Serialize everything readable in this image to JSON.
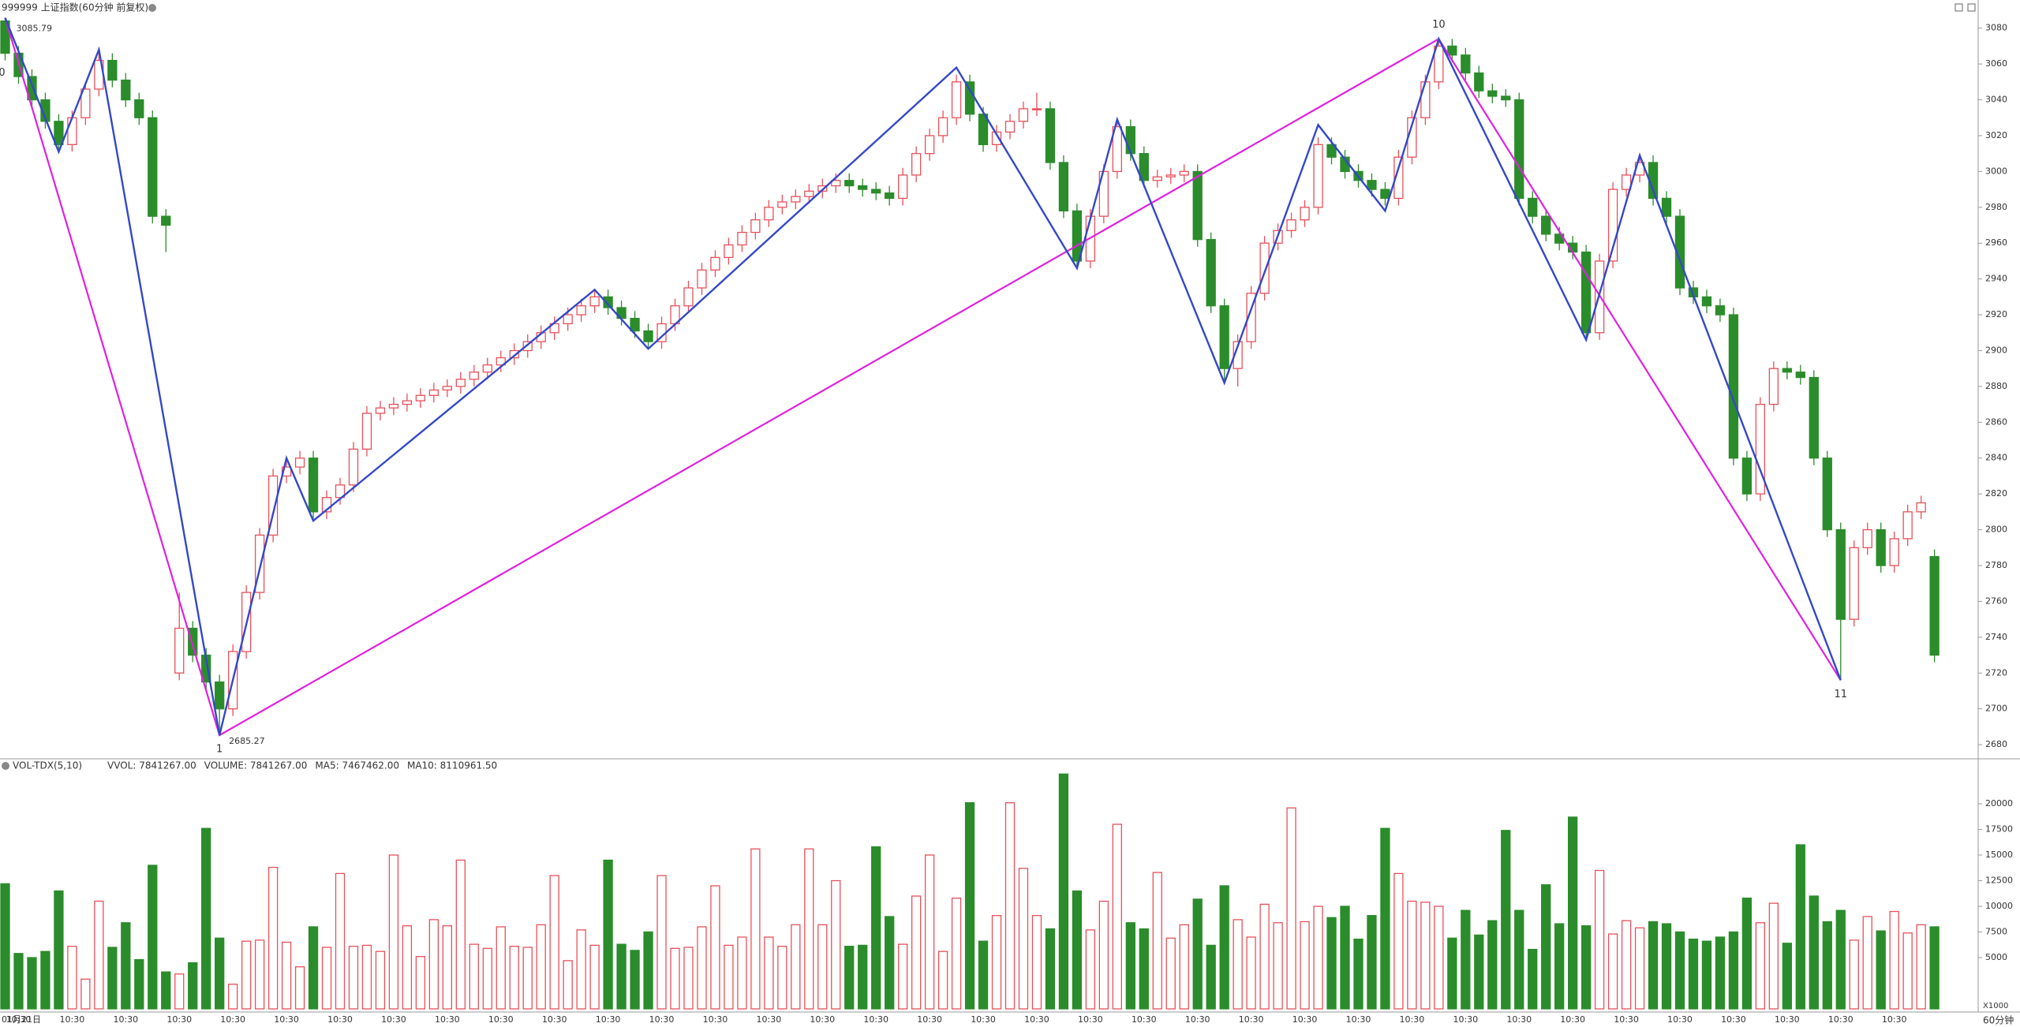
{
  "chart_data": {
    "type": "candlestick",
    "title": "999999 上证指数(60分钟 前复权)",
    "up_color": "#e8505a",
    "down_color": "#2b8c2b",
    "categories": [
      "01月21日",
      "10:30",
      null,
      null,
      null,
      "10:30",
      null,
      null,
      null,
      "10:30",
      null,
      null,
      null,
      "10:30",
      null,
      null,
      null,
      "10:30",
      null,
      null,
      null,
      "10:30",
      null,
      null,
      null,
      "10:30",
      null,
      null,
      null,
      "10:30",
      null,
      null,
      null,
      "10:30",
      null,
      null,
      null,
      "10:30",
      null,
      null,
      null,
      "10:30",
      null,
      null,
      null,
      "10:30",
      null,
      null,
      null,
      "10:30",
      null,
      null,
      null,
      "10:30",
      null,
      null,
      null,
      "10:30",
      null,
      null,
      null,
      "10:30",
      null,
      null,
      null,
      "10:30",
      null,
      null,
      null,
      "10:30",
      null,
      null,
      null,
      "10:30",
      null,
      null,
      null,
      "10:30",
      null,
      null,
      null,
      "10:30",
      null,
      null,
      null,
      "10:30",
      null,
      null,
      null,
      "10:30",
      null,
      null,
      null,
      "10:30",
      null,
      null,
      null,
      "10:30",
      null,
      null,
      null,
      "10:30",
      null,
      null,
      null,
      "10:30",
      null,
      null,
      null,
      "10:30",
      null,
      null,
      null,
      "10:30",
      null,
      null,
      null,
      "10:30",
      null,
      null,
      null,
      "10:30",
      null,
      null,
      null,
      "10:30",
      null,
      null,
      null,
      "10:30",
      null,
      null,
      null,
      "10:30",
      null,
      null,
      null,
      "10:30",
      null,
      null,
      null,
      "10:30",
      null,
      null,
      null
    ],
    "open": [
      3084,
      3066,
      3053,
      3040,
      3028,
      3015,
      3030,
      3046,
      3062,
      3051,
      3040,
      3030,
      2975,
      2720,
      2745,
      2730,
      2715,
      2700,
      2732,
      2765,
      2797,
      2830,
      2835,
      2840,
      2810,
      2818,
      2825,
      2845,
      2865,
      2868,
      2870,
      2872,
      2875,
      2878,
      2880,
      2884,
      2888,
      2892,
      2896,
      2900,
      2905,
      2910,
      2915,
      2920,
      2925,
      2930,
      2924,
      2918,
      2911,
      2905,
      2915,
      2925,
      2935,
      2945,
      2952,
      2959,
      2966,
      2973,
      2980,
      2983,
      2986,
      2989,
      2992,
      2995,
      2992,
      2990,
      2988,
      2985,
      2998,
      3010,
      3020,
      3030,
      3050,
      3032,
      3015,
      3022,
      3028,
      3035,
      3035,
      3005,
      2978,
      2950,
      2975,
      3000,
      3025,
      3010,
      2995,
      2997,
      2998,
      3000,
      2962,
      2925,
      2890,
      2905,
      2932,
      2960,
      2967,
      2973,
      2980,
      3015,
      3008,
      3000,
      2995,
      2990,
      2985,
      3008,
      3030,
      3050,
      3070,
      3065,
      3055,
      3045,
      3042,
      3040,
      2985,
      2975,
      2965,
      2960,
      2955,
      2910,
      2950,
      2990,
      2998,
      3005,
      2985,
      2975,
      2935,
      2930,
      2925,
      2920,
      2840,
      2820,
      2870,
      2890,
      2888,
      2885,
      2840,
      2800,
      2750,
      2790,
      2800,
      2780,
      2795,
      2810,
      2785
    ],
    "high": [
      3085.79,
      3070,
      3057,
      3044,
      3032,
      3034,
      3050,
      3066,
      3066,
      3055,
      3044,
      3034,
      2979,
      2765,
      2749,
      2734,
      2719,
      2736,
      2769,
      2801,
      2834,
      2839,
      2844,
      2844,
      2822,
      2829,
      2849,
      2869,
      2872,
      2874,
      2876,
      2879,
      2882,
      2884,
      2888,
      2892,
      2896,
      2900,
      2904,
      2909,
      2914,
      2919,
      2924,
      2929,
      2934,
      2934,
      2928,
      2922,
      2915,
      2919,
      2929,
      2939,
      2949,
      2956,
      2963,
      2970,
      2977,
      2984,
      2987,
      2990,
      2993,
      2996,
      2999,
      2999,
      2996,
      2994,
      2992,
      3002,
      3014,
      3024,
      3034,
      3054,
      3054,
      3036,
      3026,
      3032,
      3039,
      3044,
      3039,
      3009,
      2982,
      2979,
      3004,
      3029,
      3029,
      3014,
      3001,
      3002,
      3004,
      3004,
      2966,
      2929,
      2909,
      2936,
      2964,
      2971,
      2977,
      2984,
      3019,
      3019,
      3012,
      3004,
      2999,
      2994,
      3012,
      3034,
      3054,
      3074,
      3074,
      3069,
      3059,
      3049,
      3046,
      3044,
      2989,
      2979,
      2969,
      2964,
      2959,
      2954,
      2994,
      3002,
      3009,
      3009,
      2989,
      2979,
      2939,
      2934,
      2929,
      2924,
      2844,
      2874,
      2894,
      2894,
      2892,
      2889,
      2844,
      2804,
      2794,
      2804,
      2804,
      2799,
      2814,
      2819,
      2789
    ],
    "low": [
      3062,
      3049,
      3036,
      3024,
      3011,
      3011,
      3026,
      3042,
      3047,
      3036,
      3026,
      2971,
      2955,
      2716,
      2726,
      2711,
      2685.27,
      2696,
      2728,
      2761,
      2793,
      2826,
      2831,
      2806,
      2806,
      2814,
      2821,
      2841,
      2861,
      2864,
      2866,
      2868,
      2871,
      2874,
      2876,
      2880,
      2884,
      2888,
      2892,
      2896,
      2901,
      2906,
      2911,
      2916,
      2921,
      2920,
      2914,
      2907,
      2901,
      2901,
      2911,
      2921,
      2931,
      2941,
      2948,
      2955,
      2962,
      2969,
      2976,
      2979,
      2982,
      2985,
      2988,
      2988,
      2986,
      2984,
      2981,
      2981,
      2994,
      3006,
      3016,
      3026,
      3028,
      3011,
      3011,
      3018,
      3024,
      3031,
      3001,
      2974,
      2946,
      2946,
      2971,
      2996,
      3006,
      2991,
      2991,
      2993,
      2994,
      2958,
      2921,
      2882,
      2880,
      2901,
      2928,
      2956,
      2963,
      2969,
      2976,
      3004,
      2996,
      2991,
      2986,
      2981,
      2981,
      3004,
      3026,
      3046,
      3061,
      3051,
      3041,
      3038,
      3036,
      2981,
      2971,
      2961,
      2956,
      2951,
      2906,
      2906,
      2946,
      2986,
      2994,
      2981,
      2971,
      2931,
      2926,
      2921,
      2916,
      2836,
      2816,
      2816,
      2866,
      2884,
      2881,
      2836,
      2796,
      2716,
      2746,
      2786,
      2776,
      2776,
      2791,
      2806,
      2726
    ],
    "close": [
      3066,
      3053,
      3040,
      3028,
      3015,
      3030,
      3046,
      3062,
      3051,
      3040,
      3030,
      2975,
      2970,
      2745,
      2730,
      2715,
      2700,
      2732,
      2765,
      2797,
      2830,
      2835,
      2840,
      2810,
      2818,
      2825,
      2845,
      2865,
      2868,
      2870,
      2872,
      2875,
      2878,
      2880,
      2884,
      2888,
      2892,
      2896,
      2900,
      2905,
      2910,
      2915,
      2920,
      2925,
      2930,
      2924,
      2918,
      2911,
      2905,
      2915,
      2925,
      2935,
      2945,
      2952,
      2959,
      2966,
      2973,
      2980,
      2983,
      2986,
      2989,
      2992,
      2995,
      2992,
      2990,
      2988,
      2985,
      2998,
      3010,
      3020,
      3030,
      3050,
      3032,
      3015,
      3022,
      3028,
      3035,
      3035,
      3005,
      2978,
      2950,
      2975,
      3000,
      3025,
      3010,
      2995,
      2997,
      2998,
      3000,
      2962,
      2925,
      2890,
      2905,
      2932,
      2960,
      2967,
      2973,
      2980,
      3015,
      3008,
      3000,
      2995,
      2990,
      2985,
      3008,
      3030,
      3050,
      3070,
      3065,
      3055,
      3045,
      3042,
      3040,
      2985,
      2975,
      2965,
      2960,
      2955,
      2910,
      2950,
      2990,
      2998,
      3005,
      2985,
      2975,
      2935,
      2930,
      2925,
      2920,
      2840,
      2820,
      2870,
      2890,
      2888,
      2885,
      2840,
      2800,
      2750,
      2790,
      2800,
      2780,
      2795,
      2810,
      2815,
      2730
    ],
    "ylim": [
      2673,
      3090
    ],
    "yticks": [
      2680,
      2700,
      2720,
      2740,
      2760,
      2780,
      2800,
      2820,
      2840,
      2860,
      2880,
      2900,
      2920,
      2940,
      2960,
      2980,
      3000,
      3020,
      3040,
      3060,
      3080
    ],
    "pivot_lines": [
      {
        "color": "#e020e0",
        "x": [
          0,
          16,
          107,
          137
        ],
        "y": [
          3085.79,
          2685.27,
          3074,
          2716
        ]
      },
      {
        "color": "#3448c8",
        "x": [
          0,
          4,
          7,
          16,
          21,
          23,
          44,
          48,
          71,
          80,
          83,
          91,
          98,
          103,
          107,
          118,
          122,
          137
        ],
        "y": [
          3085.79,
          3011,
          3068,
          2685.27,
          2840,
          2805,
          2934,
          2901,
          3058,
          2946,
          3029,
          2882,
          3026,
          2978,
          3074,
          2906,
          3009,
          2716
        ]
      }
    ],
    "pivot_labels": [
      "0",
      "1",
      "10",
      "11"
    ],
    "volume": {
      "title": "VOL-TDX(5,10)",
      "stats": [
        {
          "text": "VVOL: 7841267.00",
          "color": "#333333"
        },
        {
          "text": "VOLUME: 7841267.00",
          "color": "#1e7fc8"
        },
        {
          "text": "MA5: 7467462.00",
          "color": "#1e7fc8"
        },
        {
          "text": "MA10: 8110961.50",
          "color": "#9a1a9a"
        }
      ],
      "unit": "X1000",
      "values": [
        12200,
        5400,
        5000,
        5600,
        11500,
        6100,
        2900,
        10500,
        6000,
        8400,
        4800,
        14000,
        3600,
        3400,
        4500,
        17600,
        6900,
        2400,
        6600,
        6700,
        13800,
        6500,
        4100,
        8000,
        6000,
        13200,
        6100,
        6200,
        5600,
        15000,
        8100,
        5100,
        8700,
        8100,
        14500,
        6300,
        5900,
        8000,
        6100,
        6000,
        8200,
        13000,
        4700,
        7700,
        6200,
        14500,
        6300,
        5700,
        7500,
        13000,
        5900,
        6000,
        8000,
        12000,
        6200,
        7000,
        15600,
        7000,
        6100,
        8200,
        15600,
        8200,
        12500,
        6100,
        6200,
        15800,
        9000,
        6300,
        11000,
        15000,
        5600,
        10800,
        20100,
        6600,
        9100,
        20100,
        13700,
        9100,
        7800,
        22900,
        11500,
        7700,
        10500,
        18000,
        8400,
        7800,
        13300,
        6900,
        8200,
        10700,
        6200,
        12000,
        8700,
        7000,
        10200,
        8400,
        19600,
        8500,
        10000,
        8900,
        10000,
        6800,
        9100,
        17600,
        13200,
        10500,
        10400,
        10000,
        6900,
        9600,
        7200,
        8600,
        17400,
        9600,
        5800,
        12100,
        8300,
        18700,
        8100,
        13500,
        7300,
        8600,
        7900,
        8500,
        8300,
        7500,
        6800,
        6600,
        7000,
        7500,
        10800,
        8400,
        10300,
        6400,
        16000,
        11000,
        8500,
        9600,
        6700,
        9000,
        7600,
        9500,
        7400,
        8200,
        8000
      ],
      "ylim": [
        0,
        23000
      ],
      "yticks": [
        5000,
        7500,
        10000,
        12500,
        15000,
        17500,
        20000
      ]
    },
    "period": "60分钟"
  }
}
